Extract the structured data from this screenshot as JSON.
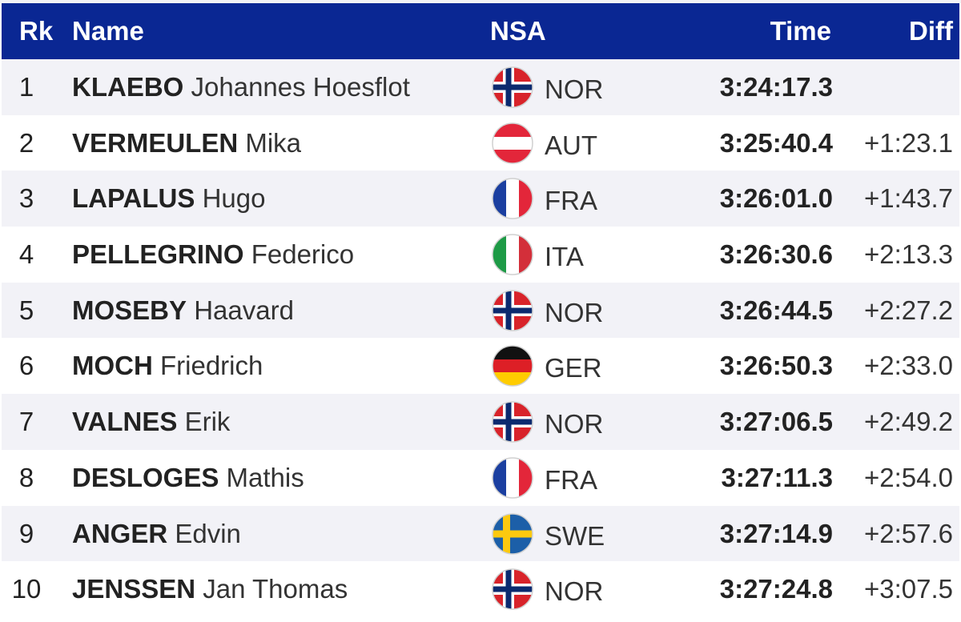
{
  "header": {
    "rank": "Rk",
    "name": "Name",
    "nsa": "NSA",
    "time": "Time",
    "diff": "Diff"
  },
  "colors": {
    "header_bg": "#0a2793",
    "row_alt_bg": "#f2f2f7"
  },
  "rows": [
    {
      "rank": "1",
      "surname": "KLAEBO",
      "given": "Johannes Hoesflot",
      "nsa": "NOR",
      "flag": "norway-flag-icon",
      "time": "3:24:17.3",
      "diff": ""
    },
    {
      "rank": "2",
      "surname": "VERMEULEN",
      "given": "Mika",
      "nsa": "AUT",
      "flag": "austria-flag-icon",
      "time": "3:25:40.4",
      "diff": "+1:23.1"
    },
    {
      "rank": "3",
      "surname": "LAPALUS",
      "given": "Hugo",
      "nsa": "FRA",
      "flag": "france-flag-icon",
      "time": "3:26:01.0",
      "diff": "+1:43.7"
    },
    {
      "rank": "4",
      "surname": "PELLEGRINO",
      "given": "Federico",
      "nsa": "ITA",
      "flag": "italy-flag-icon",
      "time": "3:26:30.6",
      "diff": "+2:13.3"
    },
    {
      "rank": "5",
      "surname": "MOSEBY",
      "given": "Haavard",
      "nsa": "NOR",
      "flag": "norway-flag-icon",
      "time": "3:26:44.5",
      "diff": "+2:27.2"
    },
    {
      "rank": "6",
      "surname": "MOCH",
      "given": "Friedrich",
      "nsa": "GER",
      "flag": "germany-flag-icon",
      "time": "3:26:50.3",
      "diff": "+2:33.0"
    },
    {
      "rank": "7",
      "surname": "VALNES",
      "given": "Erik",
      "nsa": "NOR",
      "flag": "norway-flag-icon",
      "time": "3:27:06.5",
      "diff": "+2:49.2"
    },
    {
      "rank": "8",
      "surname": "DESLOGES",
      "given": "Mathis",
      "nsa": "FRA",
      "flag": "france-flag-icon",
      "time": "3:27:11.3",
      "diff": "+2:54.0"
    },
    {
      "rank": "9",
      "surname": "ANGER",
      "given": "Edvin",
      "nsa": "SWE",
      "flag": "sweden-flag-icon",
      "time": "3:27:14.9",
      "diff": "+2:57.6"
    },
    {
      "rank": "10",
      "surname": "JENSSEN",
      "given": "Jan Thomas",
      "nsa": "NOR",
      "flag": "norway-flag-icon",
      "time": "3:27:24.8",
      "diff": "+3:07.5"
    }
  ]
}
